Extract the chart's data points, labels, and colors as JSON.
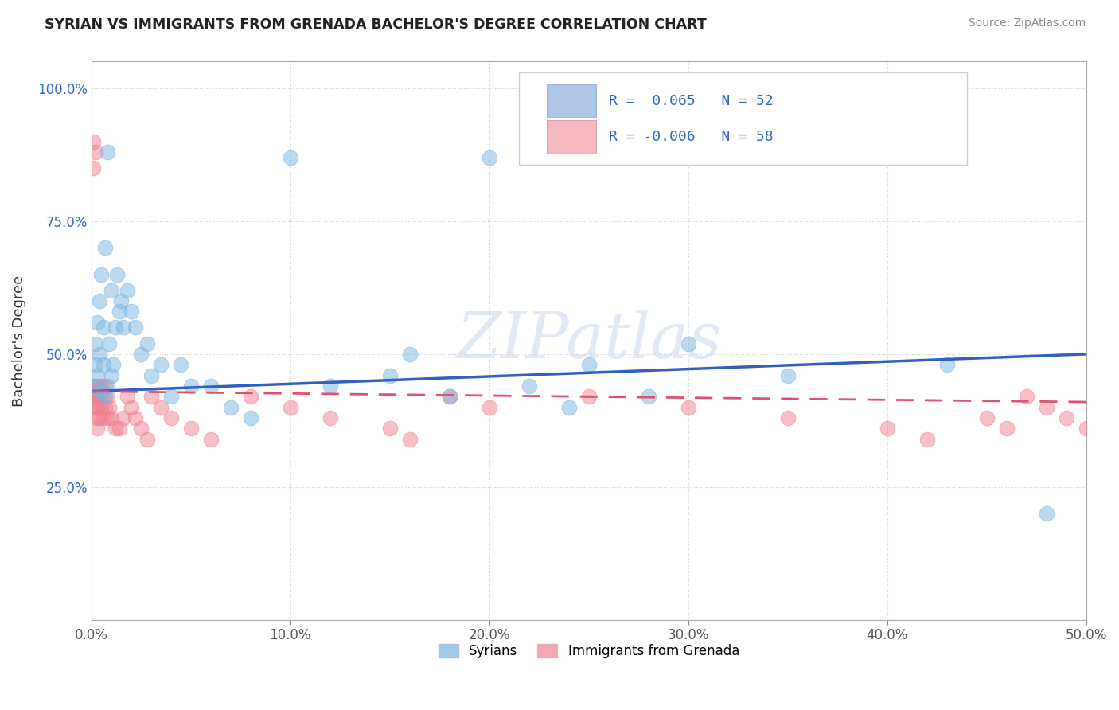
{
  "title": "SYRIAN VS IMMIGRANTS FROM GRENADA BACHELOR'S DEGREE CORRELATION CHART",
  "source": "Source: ZipAtlas.com",
  "ylabel_label": "Bachelor's Degree",
  "xlim": [
    0.0,
    0.5
  ],
  "ylim": [
    0.0,
    1.05
  ],
  "xtick_labels": [
    "0.0%",
    "10.0%",
    "20.0%",
    "30.0%",
    "40.0%",
    "50.0%"
  ],
  "xtick_values": [
    0.0,
    0.1,
    0.2,
    0.3,
    0.4,
    0.5
  ],
  "ytick_labels": [
    "25.0%",
    "50.0%",
    "75.0%",
    "100.0%"
  ],
  "ytick_values": [
    0.25,
    0.5,
    0.75,
    1.0
  ],
  "blue_color": "#7ab4e0",
  "pink_color": "#f08090",
  "trendline_blue": "#3060c0",
  "trendline_pink": "#e05070",
  "watermark_text": "ZIPatlas",
  "syrians_x": [
    0.001,
    0.002,
    0.002,
    0.003,
    0.003,
    0.004,
    0.004,
    0.005,
    0.005,
    0.006,
    0.006,
    0.007,
    0.007,
    0.008,
    0.008,
    0.009,
    0.01,
    0.01,
    0.011,
    0.012,
    0.013,
    0.014,
    0.015,
    0.016,
    0.018,
    0.02,
    0.022,
    0.025,
    0.028,
    0.03,
    0.035,
    0.04,
    0.045,
    0.05,
    0.06,
    0.07,
    0.08,
    0.1,
    0.12,
    0.15,
    0.16,
    0.18,
    0.2,
    0.22,
    0.24,
    0.25,
    0.28,
    0.3,
    0.35,
    0.4,
    0.43,
    0.48
  ],
  "syrians_y": [
    0.44,
    0.48,
    0.52,
    0.46,
    0.56,
    0.5,
    0.6,
    0.43,
    0.65,
    0.48,
    0.55,
    0.42,
    0.7,
    0.88,
    0.44,
    0.52,
    0.46,
    0.62,
    0.48,
    0.55,
    0.65,
    0.58,
    0.6,
    0.55,
    0.62,
    0.58,
    0.55,
    0.5,
    0.52,
    0.46,
    0.48,
    0.42,
    0.48,
    0.44,
    0.44,
    0.4,
    0.38,
    0.87,
    0.44,
    0.46,
    0.5,
    0.42,
    0.87,
    0.44,
    0.4,
    0.48,
    0.42,
    0.52,
    0.46,
    0.87,
    0.48,
    0.2
  ],
  "grenada_x": [
    0.001,
    0.001,
    0.001,
    0.001,
    0.001,
    0.002,
    0.002,
    0.002,
    0.002,
    0.003,
    0.003,
    0.003,
    0.003,
    0.003,
    0.004,
    0.004,
    0.004,
    0.005,
    0.005,
    0.006,
    0.006,
    0.007,
    0.007,
    0.008,
    0.008,
    0.009,
    0.01,
    0.012,
    0.014,
    0.016,
    0.018,
    0.02,
    0.022,
    0.025,
    0.028,
    0.03,
    0.035,
    0.04,
    0.05,
    0.06,
    0.08,
    0.1,
    0.12,
    0.15,
    0.16,
    0.18,
    0.2,
    0.25,
    0.3,
    0.35,
    0.4,
    0.42,
    0.45,
    0.46,
    0.47,
    0.48,
    0.49,
    0.5
  ],
  "grenada_y": [
    0.9,
    0.85,
    0.44,
    0.42,
    0.4,
    0.88,
    0.44,
    0.42,
    0.4,
    0.44,
    0.42,
    0.4,
    0.38,
    0.36,
    0.44,
    0.42,
    0.38,
    0.44,
    0.4,
    0.42,
    0.38,
    0.44,
    0.4,
    0.38,
    0.42,
    0.4,
    0.38,
    0.36,
    0.36,
    0.38,
    0.42,
    0.4,
    0.38,
    0.36,
    0.34,
    0.42,
    0.4,
    0.38,
    0.36,
    0.34,
    0.42,
    0.4,
    0.38,
    0.36,
    0.34,
    0.42,
    0.4,
    0.42,
    0.4,
    0.38,
    0.36,
    0.34,
    0.38,
    0.36,
    0.42,
    0.4,
    0.38,
    0.36
  ]
}
